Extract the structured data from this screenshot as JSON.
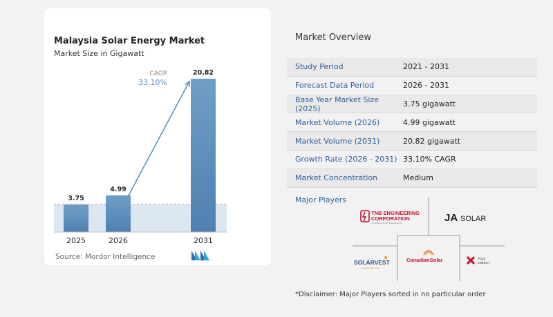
{
  "chart": {
    "title": "Malaysia Solar Energy Market",
    "subtitle": "Market Size in Gigawatt",
    "source": "Source: Mordor Intelligence",
    "cagr_label": "CAGR",
    "cagr_value": "33.10%"
  },
  "chart_data": {
    "type": "bar",
    "title": "Malaysia Solar Energy Market",
    "subtitle": "Market Size in Gigawatt",
    "categories": [
      "2025",
      "2026",
      "2031"
    ],
    "values": [
      3.75,
      4.99,
      20.82
    ],
    "data_labels": [
      "3.75",
      "4.99",
      "20.82"
    ],
    "annotation": "CAGR 33.10%",
    "ylim": [
      0,
      21
    ],
    "grid": false,
    "colors": {
      "bar_top": "#6f9ec7",
      "bar_bottom": "#4f80b0",
      "arrow": "#5b8fc4",
      "band": "#dde7f1"
    }
  },
  "overview": {
    "title": "Market Overview",
    "rows": [
      {
        "key": "Study Period",
        "value": "2021 - 2031"
      },
      {
        "key": "Forecast Data Period",
        "value": "2026 - 2031"
      },
      {
        "key": "Base Year Market Size (2025)",
        "value": "3.75 gigawatt"
      },
      {
        "key": "Market Volume (2026)",
        "value": "4.99 gigawatt"
      },
      {
        "key": "Market Volume (2031)",
        "value": "20.82 gigawatt"
      },
      {
        "key": "Growth Rate (2026 - 2031)",
        "value": "33.10% CAGR"
      },
      {
        "key": "Market Concentration",
        "value": "Medium"
      }
    ]
  },
  "players": {
    "title": "Major Players",
    "logos": {
      "tnb_line1": "TNB ENGINEERING",
      "tnb_line2": "CORPORATION",
      "tnb_tag": "A Subsidiary of Energy Malaysia Berhad",
      "ja": "JA",
      "ja_solar": "SOLAR",
      "solarvest": "SOLARVEST",
      "solarvest_tag": "energising the future",
      "canadian": "CanadianSolar",
      "plus_line1": "PLUS",
      "plus_line2": "XNERGY"
    }
  },
  "disclaimer": "*Disclaimer: Major Players sorted in no particular order"
}
